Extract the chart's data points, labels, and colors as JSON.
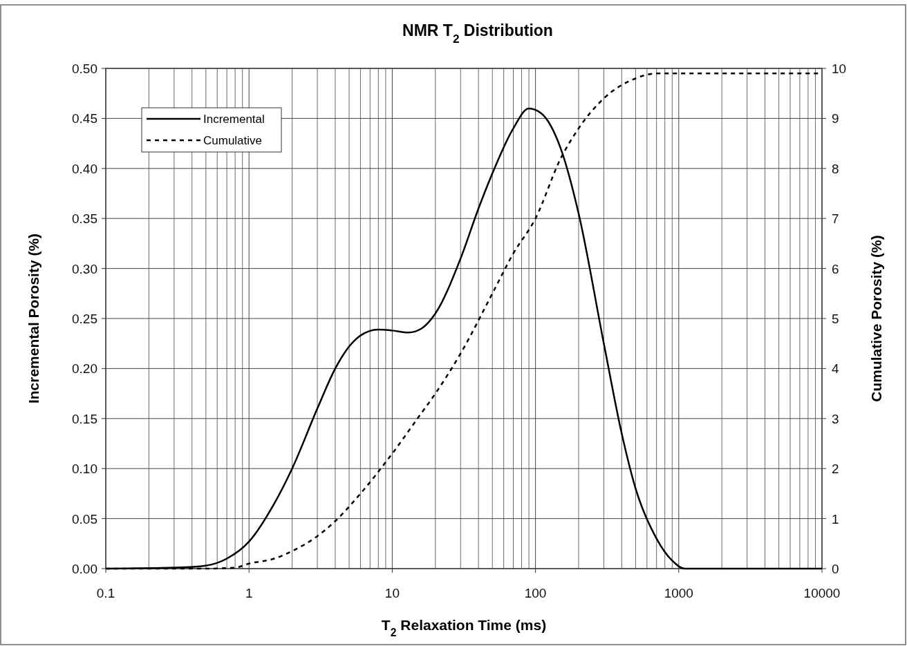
{
  "chart_data": {
    "type": "line",
    "title": "NMR T$_{2}$ Distribution",
    "xlabel": "T$_{2}$ Relaxation Time (ms)",
    "ylabel": "Incremental Porosity (%)",
    "y2label": "Cumulative Porosity (%)",
    "log": "x",
    "xlim": [
      0.1,
      10000
    ],
    "xticks": [
      0.1,
      1,
      10,
      100,
      1000,
      10000
    ],
    "ylim": [
      0,
      0.5
    ],
    "yticks": [
      {
        "value": 0,
        "label": "0.00"
      },
      {
        "value": 0.05,
        "label": "0.05"
      },
      {
        "value": 0.1,
        "label": "0.10"
      },
      {
        "value": 0.15,
        "label": "0.15"
      },
      {
        "value": 0.2,
        "label": "0.20"
      },
      {
        "value": 0.25,
        "label": "0.25"
      },
      {
        "value": 0.3,
        "label": "0.30"
      },
      {
        "value": 0.35,
        "label": "0.35"
      },
      {
        "value": 0.4,
        "label": "0.40"
      },
      {
        "value": 0.45,
        "label": "0.45"
      },
      {
        "value": 0.5,
        "label": "0.50"
      }
    ],
    "y2lim": [
      0,
      10
    ],
    "y2ticks": [
      0,
      1,
      2,
      3,
      4,
      5,
      6,
      7,
      8,
      9,
      10
    ],
    "grid": true,
    "legend": "top left",
    "marker": "none",
    "series": [
      {
        "name": "Incremental",
        "color": "#000000",
        "line_style": "solid",
        "x": [
          0.1,
          0.3,
          0.5,
          0.7,
          1,
          1.5,
          2,
          3,
          4,
          5,
          6,
          8,
          10,
          13,
          16,
          20,
          30,
          40,
          50,
          70,
          90,
          110,
          150,
          200,
          300,
          400,
          500,
          700,
          900,
          1100,
          10000
        ],
        "values": [
          0,
          0.001,
          0.003,
          0.01,
          0.027,
          0.065,
          0.1,
          0.16,
          0.2,
          0.222,
          0.233,
          0.239,
          0.238,
          0.236,
          0.24,
          0.255,
          0.31,
          0.36,
          0.395,
          0.44,
          0.46,
          0.455,
          0.42,
          0.355,
          0.225,
          0.135,
          0.08,
          0.03,
          0.008,
          0,
          0
        ]
      },
      {
        "name": "Cumulative",
        "color": "#000000",
        "line_style": "dashed",
        "axis": "y2",
        "x": [
          0.1,
          0.5,
          0.8,
          1,
          1.5,
          2,
          3,
          4,
          6,
          10,
          15,
          20,
          30,
          50,
          70,
          100,
          150,
          200,
          300,
          500,
          700,
          1000,
          10000
        ],
        "values": [
          0,
          0,
          0.02,
          0.1,
          0.2,
          0.35,
          0.65,
          0.95,
          1.5,
          2.3,
          3.0,
          3.5,
          4.3,
          5.5,
          6.3,
          7.0,
          8.2,
          8.8,
          9.4,
          9.8,
          9.9,
          9.9,
          9.9
        ]
      }
    ]
  }
}
